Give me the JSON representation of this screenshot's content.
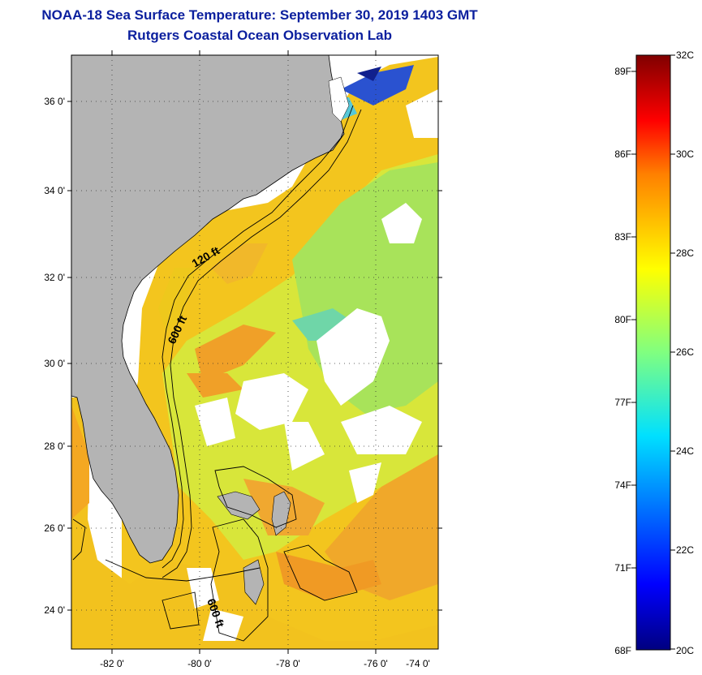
{
  "title": "NOAA-18 Sea Surface Temperature:  September 30, 2019 1403 GMT",
  "subtitle": "Rutgers Coastal Ocean Observation Lab",
  "map": {
    "lat_labels": [
      "36 0'",
      "34 0'",
      "32 0'",
      "30 0'",
      "28 0'",
      "26 0'",
      "24 0'"
    ],
    "lon_labels": [
      "-82 0'",
      "-80 0'",
      "-78 0'",
      "-76 0'",
      "-74 0'"
    ],
    "contour_labels": [
      "120 ft",
      "600 ft",
      "600 ft"
    ],
    "colors": {
      "land": "#b4b4b4",
      "cloud": "#ffffff",
      "warm": "#f5a01e",
      "mid": "#e6e61e",
      "cool": "#a0e050"
    }
  },
  "colorbar": {
    "fahrenheit": [
      "89F",
      "86F",
      "83F",
      "80F",
      "77F",
      "74F",
      "71F",
      "68F"
    ],
    "celsius": [
      "32C",
      "30C",
      "28C",
      "26C",
      "24C",
      "22C",
      "20C"
    ],
    "range_c": [
      20,
      32
    ]
  }
}
